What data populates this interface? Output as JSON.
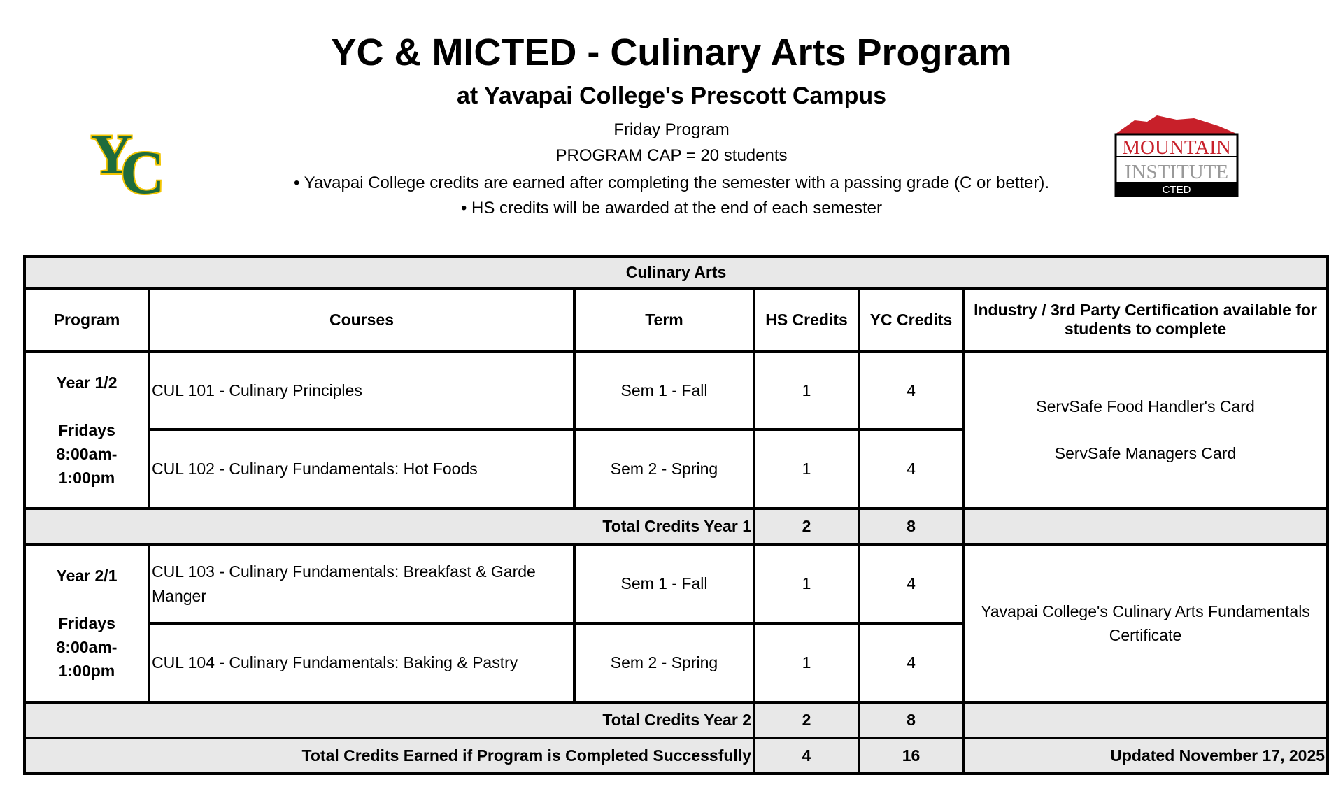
{
  "header": {
    "title": "YC & MICTED - Culinary Arts Program",
    "subtitle": "at Yavapai College's Prescott Campus",
    "lines": [
      "Friday Program",
      "PROGRAM CAP = 20 students",
      "• Yavapai College credits are earned after completing the semester with a passing grade (C or better).",
      "• HS credits will be awarded at the end of each semester"
    ]
  },
  "logos": {
    "left": "YC",
    "right": {
      "line1": "MOUNTAIN",
      "line2": "INSTITUTE",
      "line3": "CTED"
    }
  },
  "colors": {
    "yc_green": "#1e6b3c",
    "yc_gold": "#f2c400",
    "mountain_red": "#c8202a",
    "gray_fill": "#e8e8e8"
  },
  "table": {
    "section_title": "Culinary Arts",
    "columns": [
      "Program",
      "Courses",
      "Term",
      "HS Credits",
      "YC Credits",
      "Industry / 3rd Party Certification available for students to complete"
    ],
    "year1": {
      "program": [
        "Year 1/2",
        "Fridays",
        "8:00am-",
        "1:00pm"
      ],
      "rows": [
        {
          "course": "CUL 101 - Culinary Principles",
          "term": "Sem 1 - Fall",
          "hs": "1",
          "yc": "4"
        },
        {
          "course": "CUL 102 - Culinary Fundamentals: Hot Foods",
          "term": "Sem 2 - Spring",
          "hs": "1",
          "yc": "4"
        }
      ],
      "certs": [
        "ServSafe Food Handler's Card",
        "ServSafe Managers Card"
      ],
      "total_label": "Total Credits Year 1",
      "total_hs": "2",
      "total_yc": "8"
    },
    "year2": {
      "program": [
        "Year 2/1",
        "Fridays",
        "8:00am-",
        "1:00pm"
      ],
      "rows": [
        {
          "course": "CUL 103 - Culinary Fundamentals: Breakfast & Garde Manger",
          "term": "Sem 1 - Fall",
          "hs": "1",
          "yc": "4"
        },
        {
          "course": "CUL 104 - Culinary Fundamentals: Baking & Pastry",
          "term": "Sem 2 - Spring",
          "hs": "1",
          "yc": "4"
        }
      ],
      "certs": [
        "Yavapai College's Culinary Arts Fundamentals Certificate"
      ],
      "total_label": "Total Credits Year 2",
      "total_hs": "2",
      "total_yc": "8"
    },
    "grand": {
      "label": "Total Credits Earned if Program is Completed Successfully",
      "hs": "4",
      "yc": "16",
      "updated": "Updated November 17, 2025"
    }
  }
}
